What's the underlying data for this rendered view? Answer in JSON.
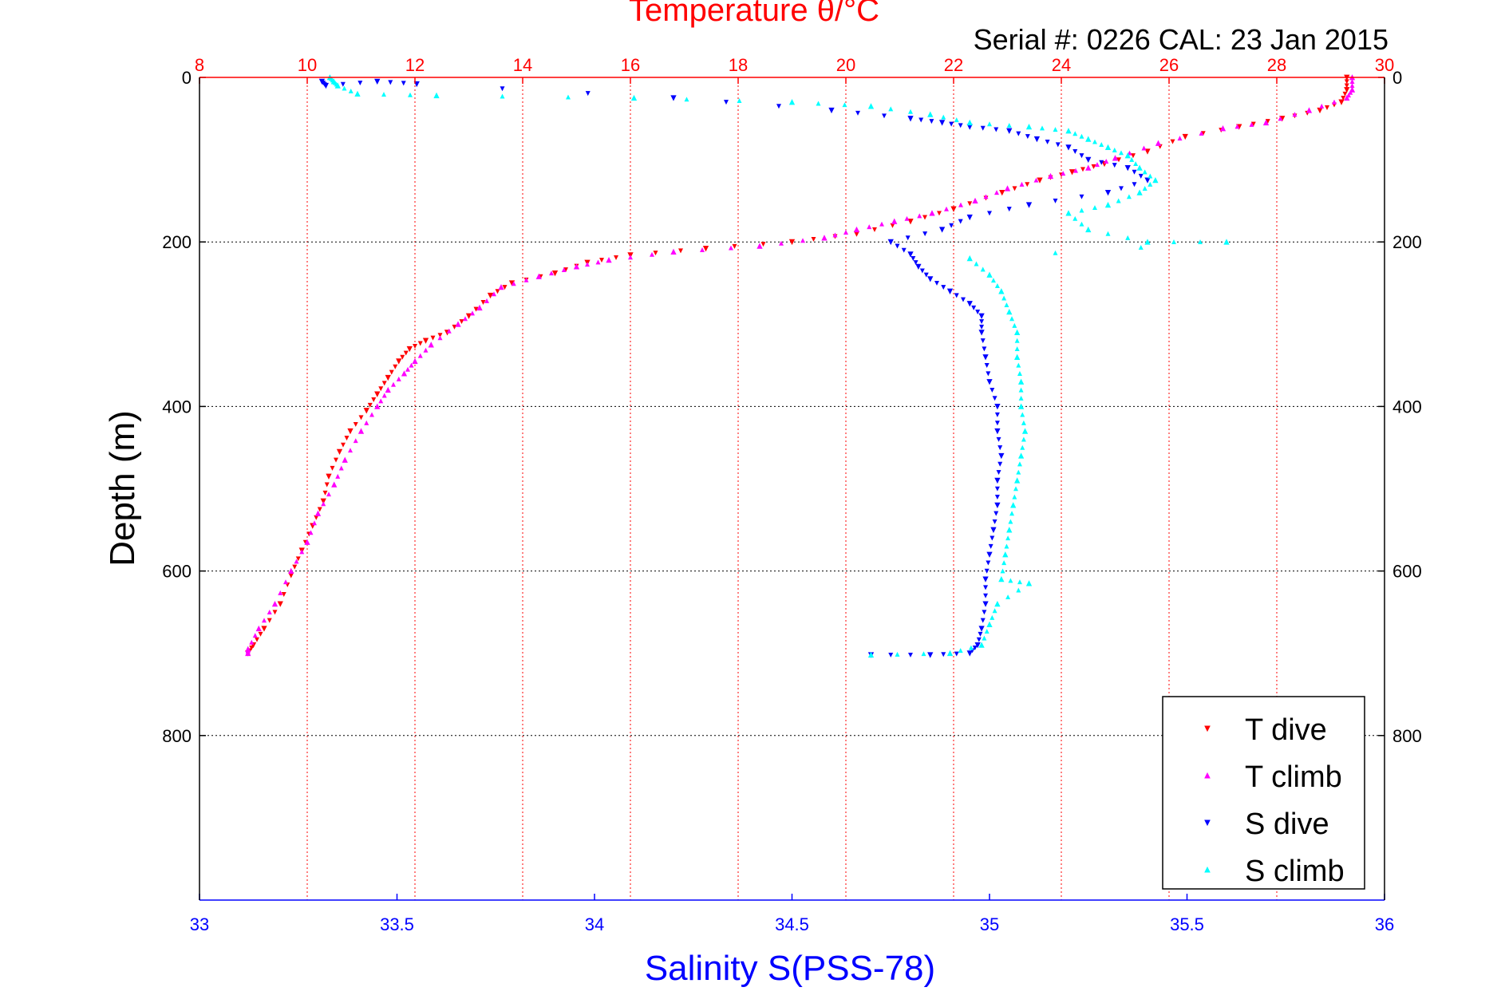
{
  "chart_data": {
    "type": "scatter",
    "title": "Temperature θ/°C",
    "subtitle": "Serial #: 0226  CAL: 23 Jan 2015",
    "xlabel": "Salinity S(PSS-78)",
    "ylabel": "Depth (m)",
    "x_top": {
      "label": "Temperature θ/°C",
      "range": [
        8,
        30
      ],
      "ticks": [
        8,
        10,
        12,
        14,
        16,
        18,
        20,
        22,
        24,
        26,
        28,
        30
      ],
      "color": "#ff0000"
    },
    "x_bottom": {
      "label": "Salinity S(PSS-78)",
      "range": [
        33,
        36
      ],
      "ticks": [
        33,
        33.5,
        34,
        34.5,
        35,
        35.5,
        36
      ],
      "color": "#0000ff"
    },
    "y": {
      "range": [
        0,
        1000
      ],
      "inverted": true,
      "ticks": [
        0,
        200,
        400,
        600,
        800
      ]
    },
    "grid": true,
    "legend_position": "bottom-right",
    "series": [
      {
        "name": "T dive",
        "axis": "temperature",
        "color": "#ff0000",
        "marker": "triangle-down",
        "points": [
          [
            29.3,
            0
          ],
          [
            29.3,
            15
          ],
          [
            29.2,
            30
          ],
          [
            28.8,
            40
          ],
          [
            28.1,
            50
          ],
          [
            27.3,
            60
          ],
          [
            26.3,
            72
          ],
          [
            25.6,
            90
          ],
          [
            24.8,
            105
          ],
          [
            24.2,
            115
          ],
          [
            23.6,
            125
          ],
          [
            22.9,
            140
          ],
          [
            22.0,
            160
          ],
          [
            21.2,
            175
          ],
          [
            20.2,
            190
          ],
          [
            19.0,
            200
          ],
          [
            17.4,
            208
          ],
          [
            16.0,
            216
          ],
          [
            15.2,
            225
          ],
          [
            14.6,
            238
          ],
          [
            13.8,
            250
          ],
          [
            13.4,
            265
          ],
          [
            13.0,
            290
          ],
          [
            12.6,
            310
          ],
          [
            12.2,
            320
          ],
          [
            11.9,
            330
          ],
          [
            11.7,
            345
          ],
          [
            11.5,
            365
          ],
          [
            11.3,
            385
          ],
          [
            11.1,
            405
          ],
          [
            10.8,
            430
          ],
          [
            10.6,
            455
          ],
          [
            10.4,
            485
          ],
          [
            10.3,
            515
          ],
          [
            10.1,
            545
          ],
          [
            9.9,
            575
          ],
          [
            9.7,
            605
          ],
          [
            9.5,
            640
          ],
          [
            9.2,
            670
          ],
          [
            9.0,
            690
          ],
          [
            8.9,
            700
          ]
        ]
      },
      {
        "name": "T climb",
        "axis": "temperature",
        "color": "#ff00ff",
        "marker": "triangle-up",
        "points": [
          [
            29.4,
            0
          ],
          [
            29.4,
            15
          ],
          [
            29.3,
            25
          ],
          [
            28.6,
            40
          ],
          [
            27.8,
            55
          ],
          [
            27.0,
            62
          ],
          [
            25.8,
            80
          ],
          [
            25.0,
            98
          ],
          [
            24.5,
            110
          ],
          [
            23.8,
            120
          ],
          [
            23.0,
            135
          ],
          [
            22.4,
            150
          ],
          [
            21.6,
            165
          ],
          [
            20.9,
            175
          ],
          [
            20.2,
            185
          ],
          [
            19.6,
            195
          ],
          [
            18.4,
            205
          ],
          [
            16.8,
            212
          ],
          [
            15.6,
            222
          ],
          [
            15.0,
            230
          ],
          [
            14.3,
            242
          ],
          [
            13.6,
            255
          ],
          [
            13.2,
            280
          ],
          [
            12.8,
            300
          ],
          [
            12.3,
            325
          ],
          [
            12.0,
            345
          ],
          [
            11.8,
            360
          ],
          [
            11.5,
            380
          ],
          [
            11.3,
            400
          ],
          [
            11.0,
            430
          ],
          [
            10.7,
            465
          ],
          [
            10.5,
            495
          ],
          [
            10.2,
            530
          ],
          [
            10.0,
            565
          ],
          [
            9.7,
            600
          ],
          [
            9.4,
            640
          ],
          [
            9.1,
            670
          ],
          [
            8.9,
            695
          ],
          [
            8.9,
            700
          ]
        ]
      },
      {
        "name": "S dive",
        "axis": "salinity",
        "color": "#0000ff",
        "marker": "triangle-down",
        "points": [
          [
            33.31,
            5
          ],
          [
            33.32,
            10
          ],
          [
            33.45,
            5
          ],
          [
            33.55,
            8
          ],
          [
            34.2,
            25
          ],
          [
            34.6,
            40
          ],
          [
            34.8,
            50
          ],
          [
            34.88,
            55
          ],
          [
            34.95,
            60
          ],
          [
            35.05,
            65
          ],
          [
            35.12,
            75
          ],
          [
            35.2,
            85
          ],
          [
            35.25,
            100
          ],
          [
            35.35,
            110
          ],
          [
            35.4,
            125
          ],
          [
            35.3,
            140
          ],
          [
            35.1,
            155
          ],
          [
            34.95,
            170
          ],
          [
            34.88,
            185
          ],
          [
            34.75,
            200
          ],
          [
            34.8,
            215
          ],
          [
            34.82,
            230
          ],
          [
            34.85,
            245
          ],
          [
            34.9,
            260
          ],
          [
            34.95,
            275
          ],
          [
            34.98,
            290
          ],
          [
            34.98,
            310
          ],
          [
            34.99,
            340
          ],
          [
            35.0,
            370
          ],
          [
            35.02,
            400
          ],
          [
            35.02,
            430
          ],
          [
            35.03,
            460
          ],
          [
            35.02,
            490
          ],
          [
            35.02,
            520
          ],
          [
            35.01,
            550
          ],
          [
            35.0,
            580
          ],
          [
            34.99,
            610
          ],
          [
            34.99,
            640
          ],
          [
            34.98,
            670
          ],
          [
            34.97,
            690
          ],
          [
            34.95,
            700
          ],
          [
            34.85,
            702
          ],
          [
            34.7,
            702
          ]
        ]
      },
      {
        "name": "S climb",
        "axis": "salinity",
        "color": "#00ffff",
        "marker": "triangle-up",
        "points": [
          [
            33.33,
            0
          ],
          [
            33.34,
            5
          ],
          [
            33.35,
            10
          ],
          [
            33.4,
            20
          ],
          [
            33.6,
            22
          ],
          [
            34.1,
            25
          ],
          [
            34.5,
            30
          ],
          [
            34.7,
            35
          ],
          [
            34.85,
            45
          ],
          [
            34.95,
            55
          ],
          [
            35.1,
            60
          ],
          [
            35.2,
            65
          ],
          [
            35.25,
            75
          ],
          [
            35.3,
            85
          ],
          [
            35.35,
            95
          ],
          [
            35.38,
            110
          ],
          [
            35.42,
            125
          ],
          [
            35.38,
            140
          ],
          [
            35.3,
            155
          ],
          [
            35.2,
            165
          ],
          [
            35.25,
            185
          ],
          [
            35.4,
            200
          ],
          [
            35.6,
            200
          ],
          [
            34.95,
            220
          ],
          [
            35.0,
            240
          ],
          [
            35.03,
            260
          ],
          [
            35.05,
            285
          ],
          [
            35.07,
            310
          ],
          [
            35.07,
            340
          ],
          [
            35.08,
            370
          ],
          [
            35.08,
            400
          ],
          [
            35.09,
            430
          ],
          [
            35.08,
            460
          ],
          [
            35.07,
            490
          ],
          [
            35.06,
            520
          ],
          [
            35.05,
            550
          ],
          [
            35.04,
            580
          ],
          [
            35.03,
            610
          ],
          [
            35.1,
            615
          ],
          [
            35.02,
            640
          ],
          [
            35.0,
            665
          ],
          [
            34.98,
            690
          ],
          [
            34.9,
            700
          ],
          [
            34.7,
            702
          ]
        ]
      }
    ]
  }
}
